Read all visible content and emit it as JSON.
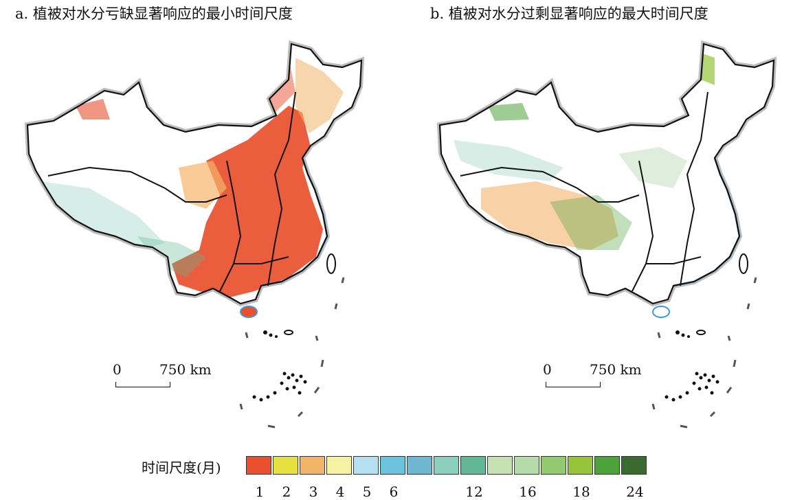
{
  "panels": [
    {
      "id": "a",
      "title": "a. 植被对水分亏缺显著响应的最小时间尺度"
    },
    {
      "id": "b",
      "title": "b. 植被对水分过剩显著响应的最大时间尺度"
    }
  ],
  "scalebar": {
    "zero": "0",
    "distance": "750 km"
  },
  "legend": {
    "label": "时间尺度(月)",
    "colors": [
      "#e8502e",
      "#e6e13e",
      "#f3b46a",
      "#f6f2a3",
      "#b7dff2",
      "#6cc3de",
      "#6db7d0",
      "#8ccfbd",
      "#62b896",
      "#c6e2b2",
      "#b6dbaa",
      "#93c971",
      "#96c53b",
      "#4ea23c",
      "#3a6a30"
    ],
    "ticks": [
      "1",
      "2",
      "3",
      "4",
      "5",
      "6",
      "12",
      "16",
      "18",
      "24"
    ]
  },
  "map_symbology": {
    "coastline_color": "#3a9ad9",
    "border_color": "#111111",
    "halo_color": "#bdbdbd"
  }
}
